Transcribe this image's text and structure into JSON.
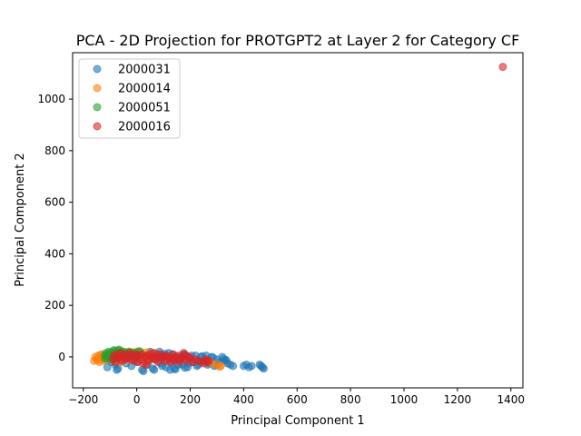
{
  "chart_data": {
    "type": "scatter",
    "title": "PCA - 2D Projection for PROTGPT2 at Layer 2 for Category CF",
    "xlabel": "Principal Component 1",
    "ylabel": "Principal Component 2",
    "xlim": [
      -240,
      1445
    ],
    "ylim": [
      -120,
      1180
    ],
    "xticks": [
      -200,
      0,
      200,
      400,
      600,
      800,
      1000,
      1200,
      1400
    ],
    "yticks": [
      0,
      200,
      400,
      600,
      800,
      1000
    ],
    "xtick_labels": [
      "−200",
      "0",
      "200",
      "400",
      "600",
      "800",
      "1000",
      "1200",
      "1400"
    ],
    "ytick_labels": [
      "0",
      "200",
      "400",
      "600",
      "800",
      "1000"
    ],
    "grid": false,
    "legend_position": "top-left",
    "series": [
      {
        "name": "2000031",
        "color": "#1f77b4",
        "points": [
          [
            -110,
            -40
          ],
          [
            -95,
            -20
          ],
          [
            -80,
            -30
          ],
          [
            -70,
            -45
          ],
          [
            -60,
            -15
          ],
          [
            -50,
            5
          ],
          [
            -40,
            -25
          ],
          [
            -30,
            10
          ],
          [
            -20,
            -35
          ],
          [
            -10,
            0
          ],
          [
            0,
            -20
          ],
          [
            10,
            15
          ],
          [
            20,
            -50
          ],
          [
            30,
            5
          ],
          [
            40,
            -30
          ],
          [
            50,
            20
          ],
          [
            60,
            -45
          ],
          [
            70,
            -10
          ],
          [
            80,
            10
          ],
          [
            90,
            -25
          ],
          [
            100,
            5
          ],
          [
            110,
            -40
          ],
          [
            120,
            15
          ],
          [
            130,
            -20
          ],
          [
            140,
            -45
          ],
          [
            150,
            0
          ],
          [
            160,
            -10
          ],
          [
            170,
            -30
          ],
          [
            180,
            10
          ],
          [
            190,
            -40
          ],
          [
            200,
            -5
          ],
          [
            210,
            -20
          ],
          [
            220,
            5
          ],
          [
            230,
            -30
          ],
          [
            240,
            0
          ],
          [
            250,
            -15
          ],
          [
            260,
            5
          ],
          [
            270,
            -25
          ],
          [
            280,
            0
          ],
          [
            290,
            -35
          ],
          [
            300,
            -10
          ],
          [
            310,
            -20
          ],
          [
            320,
            0
          ],
          [
            330,
            -15
          ],
          [
            340,
            -25
          ],
          [
            350,
            -30
          ],
          [
            360,
            -35
          ],
          [
            400,
            -35
          ],
          [
            410,
            -30
          ],
          [
            420,
            -40
          ],
          [
            430,
            -35
          ],
          [
            460,
            -30
          ],
          [
            470,
            -40
          ],
          [
            475,
            -45
          ],
          [
            465,
            -35
          ],
          [
            -75,
            -50
          ],
          [
            25,
            -55
          ],
          [
            65,
            -50
          ],
          [
            125,
            -50
          ],
          [
            145,
            -48
          ],
          [
            180,
            -42
          ],
          [
            225,
            -35
          ],
          [
            265,
            -30
          ],
          [
            300,
            -32
          ],
          [
            -30,
            15
          ],
          [
            15,
            18
          ],
          [
            55,
            15
          ],
          [
            85,
            20
          ],
          [
            105,
            12
          ],
          [
            135,
            10
          ],
          [
            175,
            8
          ],
          [
            205,
            5
          ],
          [
            245,
            3
          ],
          [
            285,
            -2
          ],
          [
            325,
            -8
          ],
          [
            335,
            -12
          ],
          [
            95,
            -35
          ],
          [
            155,
            -30
          ],
          [
            195,
            -25
          ],
          [
            235,
            -18
          ]
        ]
      },
      {
        "name": "2000014",
        "color": "#ff7f0e",
        "points": [
          [
            -160,
            -15
          ],
          [
            -155,
            0
          ],
          [
            -150,
            -10
          ],
          [
            -145,
            5
          ],
          [
            -140,
            -20
          ],
          [
            -135,
            -5
          ],
          [
            -130,
            10
          ],
          [
            -125,
            -15
          ],
          [
            -120,
            0
          ],
          [
            -115,
            5
          ],
          [
            -110,
            -10
          ],
          [
            -105,
            0
          ],
          [
            -100,
            -5
          ],
          [
            -90,
            10
          ],
          [
            -80,
            -15
          ],
          [
            -70,
            5
          ],
          [
            -60,
            -20
          ],
          [
            -50,
            0
          ],
          [
            -40,
            10
          ],
          [
            -30,
            -10
          ],
          [
            -20,
            5
          ],
          [
            -10,
            15
          ],
          [
            0,
            -5
          ],
          [
            10,
            20
          ],
          [
            20,
            10
          ],
          [
            30,
            0
          ],
          [
            40,
            -10
          ],
          [
            50,
            5
          ],
          [
            60,
            15
          ],
          [
            270,
            -20
          ],
          [
            280,
            -25
          ],
          [
            300,
            -30
          ],
          [
            310,
            -38
          ],
          [
            315,
            -35
          ],
          [
            -145,
            -12
          ],
          [
            -135,
            8
          ],
          [
            -25,
            20
          ],
          [
            5,
            22
          ],
          [
            35,
            18
          ],
          [
            45,
            -15
          ]
        ]
      },
      {
        "name": "2000051",
        "color": "#2ca02c",
        "points": [
          [
            -120,
            5
          ],
          [
            -115,
            15
          ],
          [
            -112,
            0
          ],
          [
            -110,
            10
          ],
          [
            -108,
            -5
          ],
          [
            -105,
            20
          ],
          [
            -102,
            5
          ],
          [
            -100,
            12
          ],
          [
            -98,
            -2
          ],
          [
            -95,
            18
          ],
          [
            -92,
            8
          ],
          [
            -90,
            0
          ],
          [
            -88,
            15
          ],
          [
            -85,
            5
          ],
          [
            -82,
            22
          ],
          [
            -80,
            10
          ],
          [
            -78,
            -5
          ],
          [
            -75,
            15
          ],
          [
            -72,
            25
          ],
          [
            -70,
            5
          ],
          [
            -68,
            12
          ],
          [
            -65,
            0
          ],
          [
            -62,
            18
          ],
          [
            -60,
            8
          ],
          [
            -58,
            22
          ],
          [
            -55,
            3
          ],
          [
            -52,
            14
          ],
          [
            -50,
            6
          ],
          [
            -48,
            20
          ],
          [
            -45,
            10
          ],
          [
            -42,
            0
          ],
          [
            -40,
            16
          ],
          [
            -35,
            8
          ],
          [
            -30,
            20
          ],
          [
            -25,
            5
          ],
          [
            -20,
            12
          ],
          [
            -15,
            2
          ],
          [
            -10,
            18
          ],
          [
            -5,
            8
          ],
          [
            0,
            14
          ],
          [
            5,
            4
          ],
          [
            10,
            22
          ],
          [
            -118,
            -8
          ],
          [
            -96,
            -10
          ],
          [
            -86,
            26
          ],
          [
            -66,
            28
          ]
        ]
      },
      {
        "name": "2000016",
        "color": "#d62728",
        "points": [
          [
            -90,
            -10
          ],
          [
            -85,
            5
          ],
          [
            -80,
            -20
          ],
          [
            -75,
            10
          ],
          [
            -70,
            -5
          ],
          [
            -65,
            0
          ],
          [
            -60,
            15
          ],
          [
            -55,
            -15
          ],
          [
            -50,
            5
          ],
          [
            -45,
            -10
          ],
          [
            -40,
            10
          ],
          [
            -35,
            -5
          ],
          [
            -30,
            0
          ],
          [
            -25,
            15
          ],
          [
            -20,
            -10
          ],
          [
            -15,
            5
          ],
          [
            -10,
            -15
          ],
          [
            -5,
            10
          ],
          [
            0,
            0
          ],
          [
            5,
            -20
          ],
          [
            10,
            5
          ],
          [
            15,
            -10
          ],
          [
            20,
            10
          ],
          [
            25,
            -25
          ],
          [
            30,
            0
          ],
          [
            35,
            -30
          ],
          [
            40,
            5
          ],
          [
            45,
            -15
          ],
          [
            50,
            10
          ],
          [
            55,
            -5
          ],
          [
            60,
            0
          ],
          [
            65,
            15
          ],
          [
            70,
            -10
          ],
          [
            75,
            5
          ],
          [
            80,
            -20
          ],
          [
            85,
            0
          ],
          [
            90,
            10
          ],
          [
            95,
            -5
          ],
          [
            100,
            0
          ],
          [
            105,
            -15
          ],
          [
            110,
            5
          ],
          [
            115,
            -10
          ],
          [
            120,
            0
          ],
          [
            125,
            -20
          ],
          [
            130,
            -5
          ],
          [
            135,
            10
          ],
          [
            140,
            -15
          ],
          [
            145,
            0
          ],
          [
            150,
            -10
          ],
          [
            155,
            5
          ],
          [
            160,
            -20
          ],
          [
            165,
            -5
          ],
          [
            170,
            0
          ],
          [
            175,
            15
          ],
          [
            180,
            -10
          ],
          [
            185,
            5
          ],
          [
            190,
            -15
          ],
          [
            195,
            0
          ],
          [
            200,
            -5
          ],
          [
            210,
            -20
          ],
          [
            220,
            -10
          ],
          [
            230,
            -15
          ],
          [
            240,
            -20
          ],
          [
            250,
            -25
          ],
          [
            255,
            -15
          ],
          [
            260,
            -10
          ],
          [
            265,
            -20
          ],
          [
            270,
            -15
          ],
          [
            1370,
            1125
          ]
        ]
      }
    ]
  }
}
